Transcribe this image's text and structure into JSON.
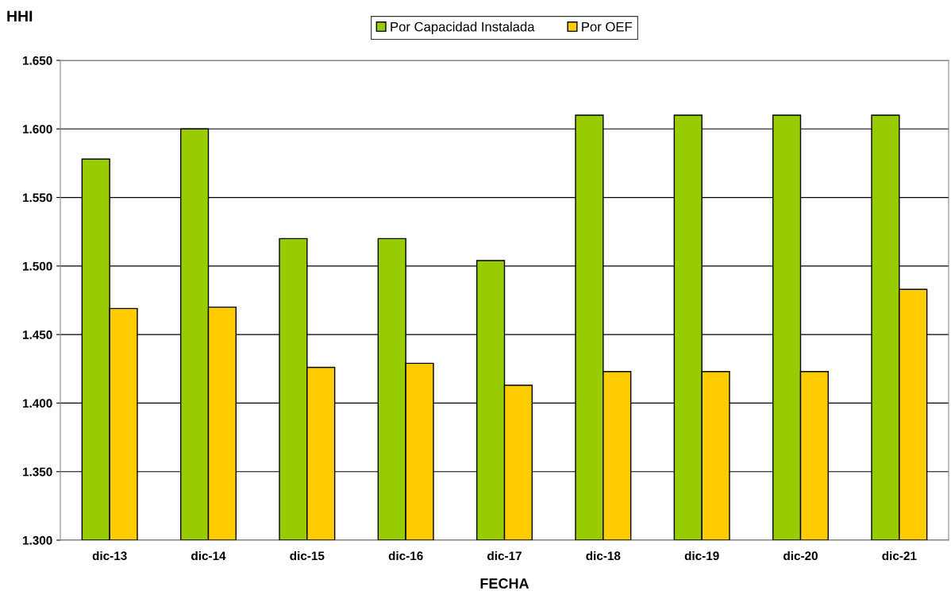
{
  "chart_data": {
    "type": "bar",
    "ylabel": "HHI",
    "xlabel": "FECHA",
    "categories": [
      "dic-13",
      "dic-14",
      "dic-15",
      "dic-16",
      "dic-17",
      "dic-18",
      "dic-19",
      "dic-20",
      "dic-21"
    ],
    "series": [
      {
        "name": "Por Capacidad Instalada",
        "color": "#99cc00",
        "values": [
          1578,
          1600,
          1520,
          1520,
          1504,
          1610,
          1610,
          1610,
          1610
        ]
      },
      {
        "name": "Por OEF",
        "color": "#ffcc00",
        "values": [
          1469,
          1470,
          1426,
          1429,
          1413,
          1423,
          1423,
          1423,
          1483
        ]
      }
    ],
    "ylim": [
      1300,
      1650
    ],
    "yticks": [
      {
        "value": 1300,
        "label": "1.300"
      },
      {
        "value": 1350,
        "label": "1.350"
      },
      {
        "value": 1400,
        "label": "1.400"
      },
      {
        "value": 1450,
        "label": "1.450"
      },
      {
        "value": 1500,
        "label": "1.500"
      },
      {
        "value": 1550,
        "label": "1.550"
      },
      {
        "value": 1600,
        "label": "1.600"
      },
      {
        "value": 1650,
        "label": "1.650"
      }
    ],
    "grid": "y",
    "legend": "top"
  }
}
